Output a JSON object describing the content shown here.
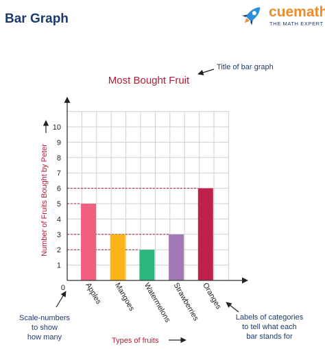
{
  "header": {
    "title": "Bar Graph",
    "logo": {
      "name": "cuemath",
      "tagline": "THE MATH EXPERT",
      "icon": "rocket-icon"
    }
  },
  "colors": {
    "title": "#b31b34",
    "annotation": "#1d3a6e",
    "guide_line": "#b31b34",
    "grid": "#cfcfcf",
    "axis": "#333333"
  },
  "annotations": {
    "title_note": "Title of bar graph",
    "scale_note": [
      "Scale-numbers",
      "to show",
      "how many"
    ],
    "labels_note": [
      "Labels of categories",
      "to tell what each",
      "bar stands for"
    ]
  },
  "chart_data": {
    "type": "bar",
    "title": "Most Bought Fruit",
    "xlabel": "Types of fruits",
    "ylabel": "Number of Fruits Bought by Peter",
    "categories": [
      "Apples",
      "Mangoes",
      "Watermelons",
      "Strawberries",
      "Oranges"
    ],
    "values": [
      5,
      3,
      2,
      3,
      6
    ],
    "bar_colors": [
      "#f0607e",
      "#fbb315",
      "#2bb77e",
      "#a27ab8",
      "#c0204c"
    ],
    "ylim": [
      0,
      11
    ],
    "yticks": [
      0,
      1,
      2,
      3,
      4,
      5,
      6,
      7,
      8,
      9,
      10
    ],
    "grid": true,
    "legend": "none"
  }
}
